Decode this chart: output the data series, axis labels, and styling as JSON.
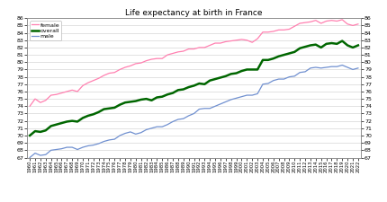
{
  "title": "Life expectancy at birth in France",
  "years": [
    1960,
    1961,
    1962,
    1963,
    1964,
    1965,
    1966,
    1967,
    1968,
    1969,
    1970,
    1971,
    1972,
    1973,
    1974,
    1975,
    1976,
    1977,
    1978,
    1979,
    1980,
    1981,
    1982,
    1983,
    1984,
    1985,
    1986,
    1987,
    1988,
    1989,
    1990,
    1991,
    1992,
    1993,
    1994,
    1995,
    1996,
    1997,
    1998,
    1999,
    2000,
    2001,
    2002,
    2003,
    2004,
    2005,
    2006,
    2007,
    2008,
    2009,
    2010,
    2011,
    2012,
    2013,
    2014,
    2015,
    2016,
    2017,
    2018,
    2019,
    2020,
    2021,
    2022
  ],
  "female": [
    74.0,
    75.0,
    74.5,
    74.8,
    75.5,
    75.6,
    75.8,
    76.0,
    76.2,
    76.0,
    76.8,
    77.2,
    77.5,
    77.8,
    78.2,
    78.5,
    78.6,
    79.0,
    79.3,
    79.5,
    79.8,
    79.9,
    80.2,
    80.4,
    80.5,
    80.5,
    81.0,
    81.2,
    81.4,
    81.5,
    81.8,
    81.8,
    82.0,
    82.0,
    82.3,
    82.6,
    82.6,
    82.8,
    82.9,
    83.0,
    83.1,
    83.0,
    82.7,
    83.2,
    84.1,
    84.1,
    84.2,
    84.4,
    84.4,
    84.5,
    84.9,
    85.3,
    85.4,
    85.5,
    85.7,
    85.3,
    85.6,
    85.7,
    85.6,
    85.8,
    85.2,
    85.0,
    85.2
  ],
  "overall": [
    70.0,
    70.6,
    70.5,
    70.7,
    71.3,
    71.5,
    71.7,
    71.9,
    72.0,
    71.9,
    72.4,
    72.7,
    72.9,
    73.2,
    73.6,
    73.7,
    73.8,
    74.2,
    74.5,
    74.6,
    74.7,
    74.9,
    75.0,
    74.8,
    75.2,
    75.3,
    75.6,
    75.8,
    76.2,
    76.3,
    76.6,
    76.8,
    77.1,
    77.0,
    77.5,
    77.7,
    77.9,
    78.1,
    78.4,
    78.5,
    78.8,
    79.0,
    79.0,
    79.0,
    80.3,
    80.3,
    80.5,
    80.8,
    81.0,
    81.2,
    81.4,
    81.9,
    82.1,
    82.3,
    82.4,
    82.0,
    82.5,
    82.6,
    82.5,
    82.9,
    82.3,
    82.0,
    82.3
  ],
  "male": [
    67.0,
    67.6,
    67.3,
    67.4,
    68.0,
    68.1,
    68.2,
    68.4,
    68.4,
    68.1,
    68.4,
    68.6,
    68.7,
    68.9,
    69.2,
    69.4,
    69.5,
    70.0,
    70.3,
    70.5,
    70.2,
    70.4,
    70.8,
    71.0,
    71.2,
    71.2,
    71.5,
    71.9,
    72.2,
    72.3,
    72.7,
    73.0,
    73.6,
    73.7,
    73.7,
    74.0,
    74.3,
    74.6,
    74.9,
    75.1,
    75.3,
    75.5,
    75.5,
    75.7,
    77.0,
    77.1,
    77.5,
    77.7,
    77.7,
    78.0,
    78.1,
    78.6,
    78.7,
    79.2,
    79.3,
    79.2,
    79.3,
    79.4,
    79.4,
    79.6,
    79.3,
    79.0,
    79.2
  ],
  "female_color": "#ff80b0",
  "overall_color": "#006600",
  "male_color": "#7090d0",
  "ylim": [
    67,
    86
  ],
  "yticks": [
    67,
    68,
    69,
    70,
    71,
    72,
    73,
    74,
    75,
    76,
    77,
    78,
    79,
    80,
    81,
    82,
    83,
    84,
    85,
    86
  ],
  "grid_color": "#cccccc",
  "bg_color": "#ffffff",
  "legend_labels": [
    "female",
    "overall",
    "male"
  ],
  "overall_linewidth": 1.8,
  "thin_linewidth": 0.9,
  "title_fontsize": 6.5
}
